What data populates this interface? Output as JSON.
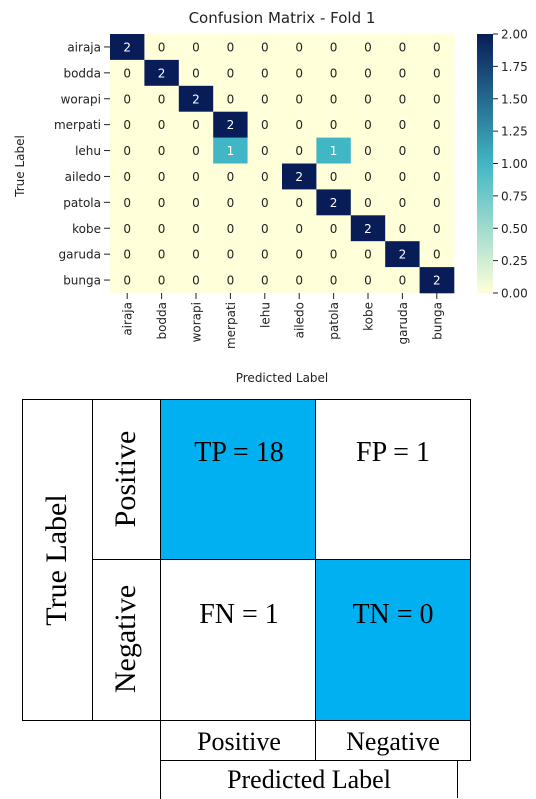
{
  "chart_data": [
    {
      "type": "heatmap",
      "title": "Confusion Matrix - Fold 1",
      "xlabel": "Predicted Label",
      "ylabel": "True Label",
      "row_labels": [
        "airaja",
        "bodda",
        "worapi",
        "merpati",
        "lehu",
        "ailedo",
        "patola",
        "kobe",
        "garuda",
        "bunga"
      ],
      "col_labels": [
        "airaja",
        "bodda",
        "worapi",
        "merpati",
        "lehu",
        "ailedo",
        "patola",
        "kobe",
        "garuda",
        "bunga"
      ],
      "values": [
        [
          2,
          0,
          0,
          0,
          0,
          0,
          0,
          0,
          0,
          0
        ],
        [
          0,
          2,
          0,
          0,
          0,
          0,
          0,
          0,
          0,
          0
        ],
        [
          0,
          0,
          2,
          0,
          0,
          0,
          0,
          0,
          0,
          0
        ],
        [
          0,
          0,
          0,
          2,
          0,
          0,
          0,
          0,
          0,
          0
        ],
        [
          0,
          0,
          0,
          1,
          0,
          0,
          1,
          0,
          0,
          0
        ],
        [
          0,
          0,
          0,
          0,
          0,
          2,
          0,
          0,
          0,
          0
        ],
        [
          0,
          0,
          0,
          0,
          0,
          0,
          2,
          0,
          0,
          0
        ],
        [
          0,
          0,
          0,
          0,
          0,
          0,
          0,
          2,
          0,
          0
        ],
        [
          0,
          0,
          0,
          0,
          0,
          0,
          0,
          0,
          2,
          0
        ],
        [
          0,
          0,
          0,
          0,
          0,
          0,
          0,
          0,
          0,
          2
        ]
      ],
      "colorbar": {
        "range": [
          0,
          2
        ],
        "ticks": [
          "0.00",
          "0.25",
          "0.50",
          "0.75",
          "1.00",
          "1.25",
          "1.50",
          "1.75",
          "2.00"
        ],
        "colors": [
          "#ffffd9",
          "#41b6c4",
          "#081d58"
        ]
      }
    },
    {
      "type": "table",
      "title": "",
      "row_axis_label": "True Label",
      "col_axis_label": "Predicted Label",
      "row_labels": [
        "Positive",
        "Negative"
      ],
      "col_labels": [
        "Positive",
        "Negative"
      ],
      "cells": [
        [
          {
            "label": "TP = 18",
            "highlight": true
          },
          {
            "label": "FP = 1",
            "highlight": false
          }
        ],
        [
          {
            "label": "FN = 1",
            "highlight": false
          },
          {
            "label": "TN = 0",
            "highlight": true
          }
        ]
      ],
      "highlight_color": "#00b0f0"
    }
  ]
}
